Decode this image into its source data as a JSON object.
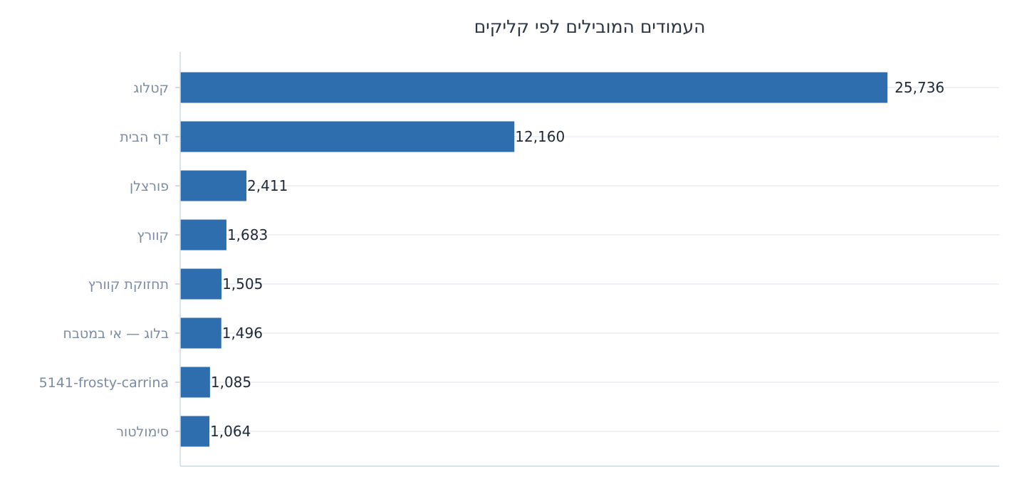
{
  "chart_data": {
    "type": "bar",
    "orientation": "horizontal",
    "title": "העמודים המובילים לפי קליקים",
    "categories": [
      "קטלוג",
      "דף הבית",
      "פורצלן",
      "קוורץ",
      "תחזוקת קוורץ",
      "בלוג — אי במטבח",
      "5141-frosty-carrina",
      "סימולטור"
    ],
    "values": [
      25736,
      12160,
      2411,
      1683,
      1505,
      1496,
      1085,
      1064
    ],
    "value_labels": [
      "25,736",
      "12,160",
      "2,411",
      "1,683",
      "1,505",
      "1,496",
      "1,085",
      "1,064"
    ],
    "xlim": [
      0,
      29800
    ],
    "grid": true,
    "legend": "none",
    "colors": {
      "bar": "#2f6eae",
      "grid": "#e8edf3",
      "axis": "#cfdae6",
      "tick_label": "#7b8ba3",
      "value_label": "#1f2937",
      "title": "#2b3544"
    }
  }
}
